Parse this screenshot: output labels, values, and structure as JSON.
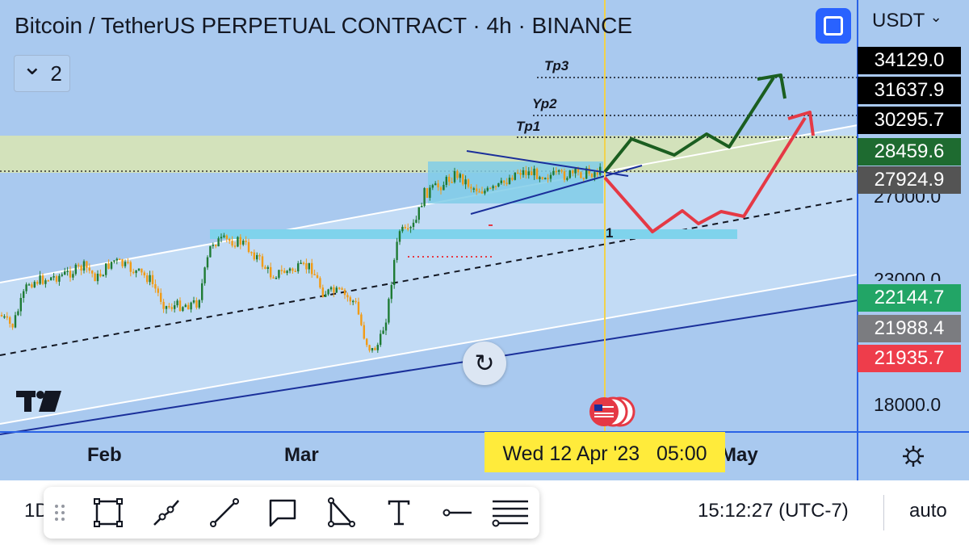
{
  "chart": {
    "title": "Bitcoin / TetherUS PERPETUAL CONTRACT · 4h · BINANCE",
    "collapse_count": "2",
    "currency": "USDT",
    "currency_chevron": "⌄",
    "annotations": {
      "tp3": "Tp3",
      "yp2": "Yp2",
      "tp1": "Tp1",
      "point_one": "1"
    },
    "crosshair_date": "Wed 12 Apr '23   05:00",
    "logo_text": "TV",
    "reset_symbol": "↻",
    "colors": {
      "background": "#a9c9ef",
      "channel_fill": "#c2dbf5",
      "resistance_zone": "#d3e2bb",
      "support_zone": "#7fd3ec",
      "consolidation_box": "#80cde8",
      "bullish_path": "#1b5e20",
      "bearish_path": "#e53945",
      "candle_up": "#1e7b34",
      "candle_down": "#f19b16",
      "crosshair": "#f1d24b"
    }
  },
  "price_axis": {
    "labels": [
      "23000.0",
      "18000.0"
    ],
    "partial_label": "27000.0",
    "tags": [
      {
        "value": "34129.0",
        "bg": "#000000"
      },
      {
        "value": "31637.9",
        "bg": "#000000"
      },
      {
        "value": "30295.7",
        "bg": "#000000"
      },
      {
        "value": "28459.6",
        "bg": "#1e6b30"
      },
      {
        "value": "27924.9",
        "bg": "#545454"
      },
      {
        "value": "22144.7",
        "bg": "#22a566"
      },
      {
        "value": "21988.4",
        "bg": "#7b7c80"
      },
      {
        "value": "21935.7",
        "bg": "#ee3d4b"
      }
    ]
  },
  "time_axis": {
    "months": [
      "Feb",
      "Mar",
      "May"
    ]
  },
  "bottom_bar": {
    "interval": "1D",
    "clock": "15:12:27 (UTC-7)",
    "scale_mode": "auto",
    "tools": [
      "rectangle-tool",
      "path-tool",
      "trendline-tool",
      "callout-tool",
      "triangle-tool",
      "text-tool",
      "horizontal-line-tool",
      "fib-tool"
    ]
  }
}
